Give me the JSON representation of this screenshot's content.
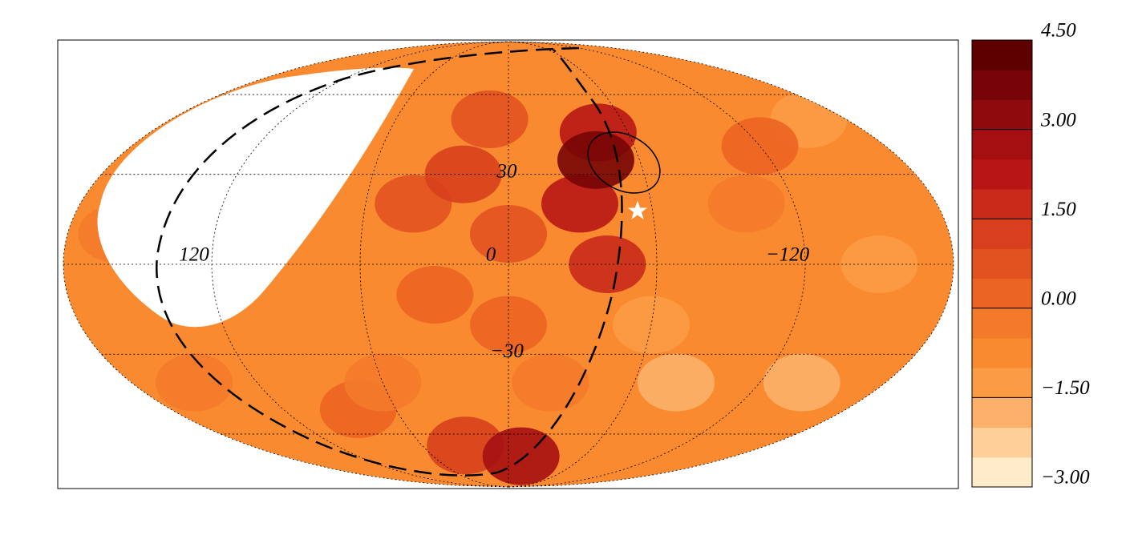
{
  "chart_data": {
    "type": "skymap",
    "projection": "mollweide",
    "lon_ticks": [
      120,
      0,
      {
        "value": -120,
        "label": "−120"
      }
    ],
    "lat_ticks": [
      30,
      {
        "value": -30,
        "label": "−30"
      }
    ],
    "background_value": -1.0,
    "spots": {
      "lon": [
        160,
        -150,
        -160,
        -140,
        -100,
        -80,
        -120,
        150,
        80,
        60,
        -60,
        -100,
        30,
        0,
        40,
        20,
        10,
        0,
        -20,
        30,
        -40,
        -45,
        -30,
        -10,
        -40
      ],
      "lat": [
        10,
        0,
        50,
        -40,
        20,
        -40,
        40,
        -40,
        -50,
        -40,
        -20,
        -10,
        -10,
        -20,
        20,
        30,
        50,
        10,
        -40,
        -65,
        0,
        45,
        20,
        -70,
        35
      ],
      "values": [
        -0.5,
        -1.5,
        -1.5,
        -2.0,
        -0.5,
        -2.0,
        0.0,
        -0.5,
        0.0,
        -0.5,
        -1.5,
        -1.0,
        0.0,
        0.0,
        0.5,
        1.0,
        0.5,
        0.5,
        -0.5,
        1.0,
        1.5,
        2.0,
        2.0,
        2.5,
        3.5
      ]
    },
    "colorbar": {
      "lim": [
        -3.0,
        4.5
      ],
      "ticks": [
        {
          "value": -3.0,
          "label": "−3.00"
        },
        {
          "value": -1.5,
          "label": "−1.50"
        },
        {
          "value": 0.0,
          "label": "0.00"
        },
        {
          "value": 1.5,
          "label": "1.50"
        },
        {
          "value": 3.0,
          "label": "3.00"
        },
        {
          "value": 4.5,
          "label": "4.50"
        }
      ],
      "colors": [
        "#fdebc9",
        "#fdd09a",
        "#fcb06a",
        "#fb9b45",
        "#f98a30",
        "#f37a2a",
        "#ec6424",
        "#e25221",
        "#d8401d",
        "#c92a1a",
        "#b81615",
        "#a50f12",
        "#8e0a0c",
        "#770406",
        "#5e0000"
      ]
    }
  }
}
